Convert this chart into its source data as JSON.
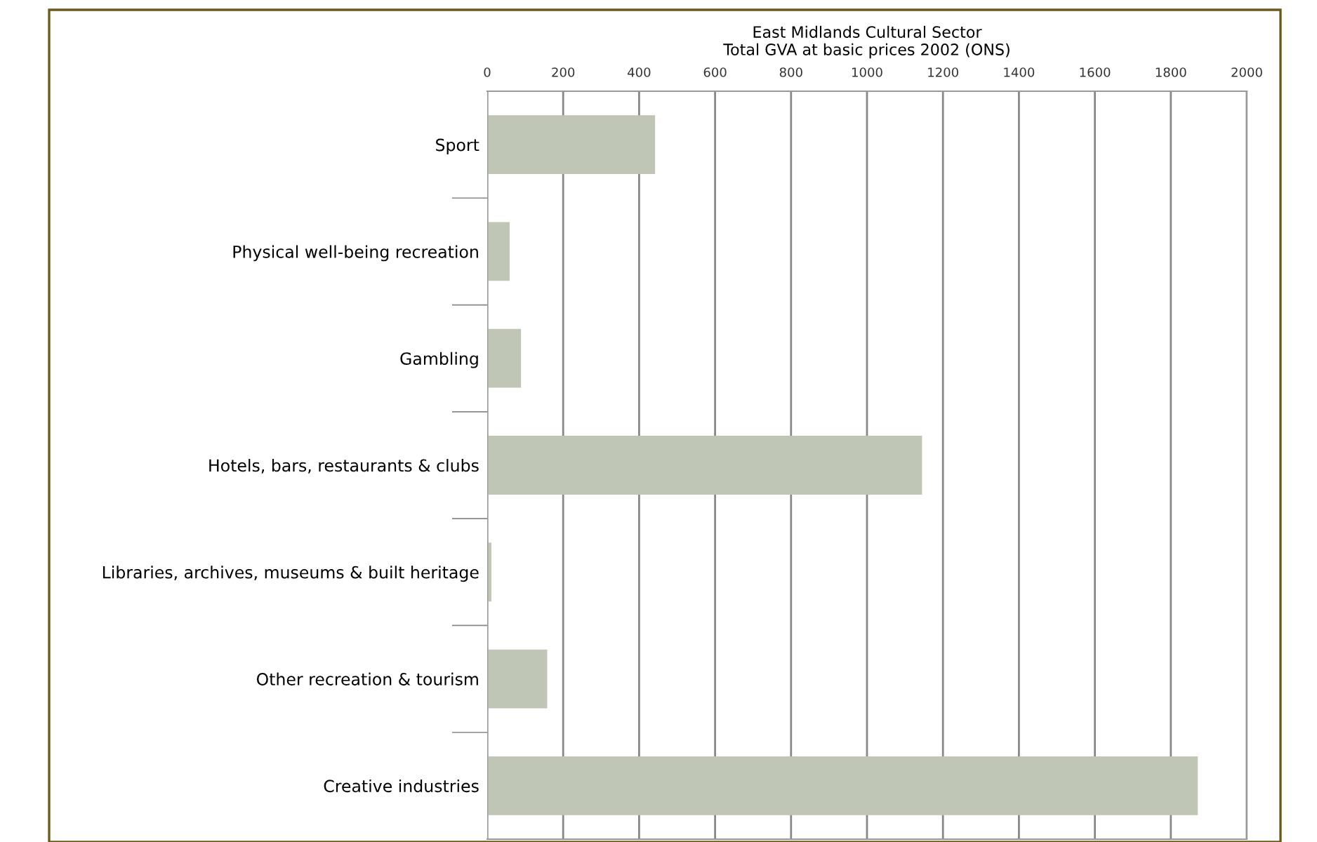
{
  "chart_data": {
    "type": "bar",
    "orientation": "horizontal",
    "title": "East Midlands Cultural Sector\nTotal GVA at basic prices 2002 (ONS)",
    "categories": [
      "Sport",
      "Physical well-being recreation",
      "Gambling",
      "Hotels, bars, restaurants & clubs",
      "Libraries, archives, museums & built heritage",
      "Other recreation & tourism",
      "Creative industries"
    ],
    "values": [
      442,
      59,
      89,
      1145,
      11,
      158,
      1871
    ],
    "color": "#bfc6b5",
    "xlim": [
      0,
      2000
    ],
    "xticks": [
      0,
      200,
      400,
      600,
      800,
      1000,
      1200,
      1400,
      1600,
      1800,
      2000
    ],
    "grid": "x"
  }
}
